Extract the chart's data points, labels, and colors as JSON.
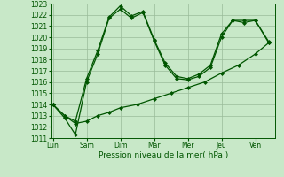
{
  "xlabel": "Pression niveau de la mer( hPa )",
  "ylim": [
    1011,
    1023
  ],
  "yticks": [
    1011,
    1012,
    1013,
    1014,
    1015,
    1016,
    1017,
    1018,
    1019,
    1020,
    1021,
    1022,
    1023
  ],
  "xtick_labels": [
    "Lun",
    "Sam",
    "Dim",
    "Mar",
    "Mer",
    "Jeu",
    "Ven"
  ],
  "xtick_positions": [
    0,
    1,
    2,
    3,
    4,
    5,
    6
  ],
  "background_color": "#c8e8c8",
  "grid_color": "#99bb99",
  "line_color": "#005500",
  "xlim": [
    -0.05,
    6.6
  ],
  "line1_x": [
    0,
    0.35,
    0.67,
    1.0,
    1.33,
    1.67,
    2.0,
    2.5,
    3.0,
    3.5,
    4.0,
    4.5,
    5.0,
    5.5,
    6.0,
    6.4
  ],
  "line1_y": [
    1014.0,
    1013.0,
    1012.3,
    1012.5,
    1013.0,
    1013.3,
    1013.7,
    1014.0,
    1014.5,
    1015.0,
    1015.5,
    1016.0,
    1016.8,
    1017.5,
    1018.5,
    1019.5
  ],
  "line2_x": [
    0,
    0.35,
    0.67,
    1.0,
    1.33,
    1.67,
    2.0,
    2.33,
    2.67,
    3.0,
    3.33,
    3.67,
    4.0,
    4.33,
    4.67,
    5.0,
    5.33,
    5.67,
    6.0,
    6.4
  ],
  "line2_y": [
    1014.0,
    1012.8,
    1011.3,
    1016.0,
    1018.5,
    1021.7,
    1022.5,
    1021.7,
    1022.2,
    1019.7,
    1017.5,
    1016.3,
    1016.2,
    1016.5,
    1017.3,
    1020.0,
    1021.5,
    1021.3,
    1021.5,
    1019.5
  ],
  "line3_x": [
    0,
    0.35,
    0.67,
    1.0,
    1.33,
    1.67,
    2.0,
    2.33,
    2.67,
    3.0,
    3.33,
    3.67,
    4.0,
    4.33,
    4.67,
    5.0,
    5.33,
    5.67,
    6.0,
    6.4
  ],
  "line3_y": [
    1014.0,
    1013.0,
    1012.5,
    1016.3,
    1018.8,
    1021.8,
    1022.8,
    1021.9,
    1022.3,
    1019.8,
    1017.7,
    1016.5,
    1016.3,
    1016.7,
    1017.5,
    1020.3,
    1021.5,
    1021.5,
    1021.5,
    1019.6
  ]
}
